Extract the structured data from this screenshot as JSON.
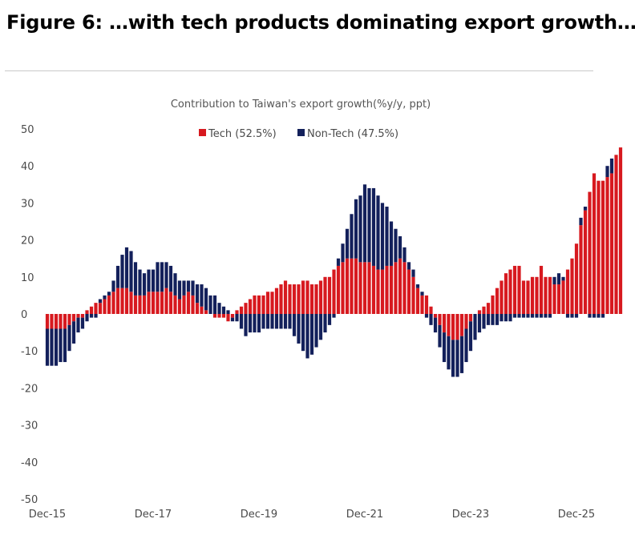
{
  "figure_title": "Figure 6: …with tech products dominating export growth…",
  "chart_data": {
    "type": "bar",
    "stacked": true,
    "title": "Contribution to Taiwan's export growth(%y/y, ppt)",
    "xlabel": "",
    "ylabel": "",
    "ylim": [
      -50,
      50
    ],
    "yticks": [
      "50",
      "40",
      "30",
      "20",
      "10",
      "0",
      "-10",
      "-20",
      "-30",
      "-40",
      "-50"
    ],
    "ytick_values": [
      50,
      40,
      30,
      20,
      10,
      0,
      -10,
      -20,
      -30,
      -40,
      -50
    ],
    "x_tick_labels": [
      {
        "label": "Dec-15",
        "index": 0
      },
      {
        "label": "Dec-17",
        "index": 24
      },
      {
        "label": "Dec-19",
        "index": 48
      },
      {
        "label": "Dec-21",
        "index": 72
      },
      {
        "label": "Dec-23",
        "index": 96
      },
      {
        "label": "Dec-25",
        "index": 120
      }
    ],
    "legend_position": "top-center",
    "colors": {
      "tech": "#d7191f",
      "nontech": "#13205b"
    },
    "series": [
      {
        "name": "Tech (52.5%)",
        "key": "tech",
        "values": [
          -4,
          -4,
          -4,
          -4,
          -4,
          -3,
          -2,
          -1,
          -1,
          1,
          2,
          3,
          3,
          4,
          5,
          6,
          7,
          7,
          7,
          6,
          5,
          5,
          5,
          6,
          6,
          6,
          6,
          7,
          6,
          5,
          4,
          5,
          6,
          5,
          3,
          2,
          1,
          0,
          -1,
          -1,
          -1,
          -2,
          -1,
          1,
          2,
          3,
          4,
          5,
          5,
          5,
          6,
          6,
          7,
          8,
          9,
          8,
          8,
          8,
          9,
          9,
          8,
          8,
          9,
          10,
          10,
          12,
          13,
          14,
          15,
          15,
          15,
          14,
          14,
          14,
          13,
          12,
          12,
          13,
          13,
          14,
          15,
          14,
          12,
          10,
          7,
          5,
          5,
          2,
          -1,
          -3,
          -5,
          -6,
          -7,
          -7,
          -6,
          -4,
          -2,
          0,
          1,
          2,
          3,
          5,
          7,
          9,
          11,
          12,
          13,
          13,
          9,
          9,
          10,
          10,
          13,
          10,
          10,
          8,
          8,
          9,
          12,
          15,
          19,
          24,
          28,
          33,
          38,
          36,
          36,
          37,
          38,
          43,
          45
        ]
      },
      {
        "name": "Non-Tech (47.5%)",
        "key": "nontech",
        "values": [
          -10,
          -10,
          -10,
          -9,
          -9,
          -7,
          -6,
          -4,
          -3,
          -2,
          -1,
          -1,
          1,
          1,
          1,
          3,
          6,
          9,
          11,
          11,
          9,
          7,
          6,
          6,
          6,
          8,
          8,
          7,
          7,
          6,
          5,
          4,
          3,
          4,
          5,
          6,
          6,
          5,
          5,
          3,
          2,
          1,
          -1,
          -2,
          -4,
          -6,
          -5,
          -5,
          -5,
          -4,
          -4,
          -4,
          -4,
          -4,
          -4,
          -4,
          -6,
          -8,
          -10,
          -12,
          -11,
          -9,
          -7,
          -5,
          -3,
          -1,
          2,
          5,
          8,
          12,
          16,
          18,
          21,
          20,
          21,
          20,
          18,
          16,
          12,
          9,
          6,
          4,
          2,
          2,
          1,
          1,
          -1,
          -3,
          -4,
          -6,
          -8,
          -9,
          -10,
          -10,
          -10,
          -9,
          -8,
          -7,
          -5,
          -4,
          -3,
          -3,
          -3,
          -2,
          -2,
          -2,
          -1,
          -1,
          -1,
          -1,
          -1,
          -1,
          -1,
          -1,
          -1,
          2,
          3,
          1,
          -1,
          -1,
          -1,
          2,
          1,
          -1,
          -1,
          -1,
          -1,
          3,
          4
        ]
      }
    ]
  }
}
